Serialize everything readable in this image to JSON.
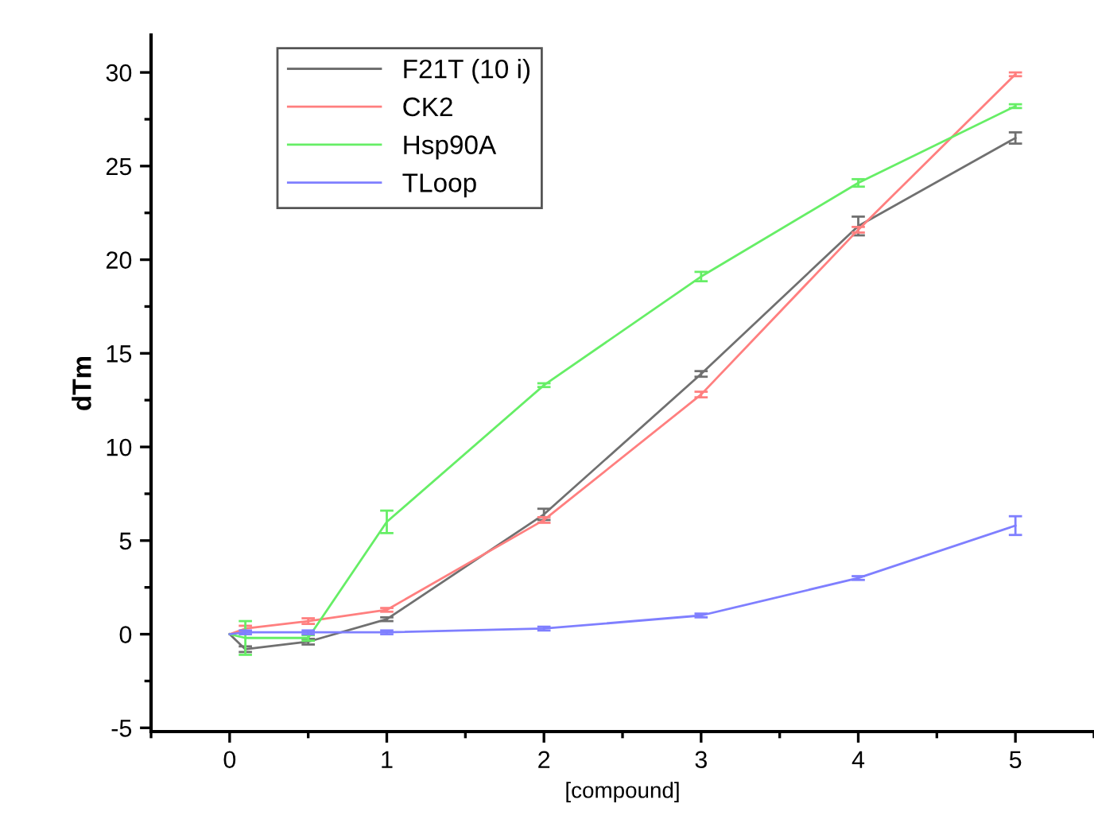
{
  "chart_data": {
    "type": "line",
    "xlabel": "[compound]",
    "ylabel": "dTm",
    "x": [
      0,
      0.1,
      0.5,
      1,
      2,
      3,
      4,
      5
    ],
    "series": [
      {
        "name": "F21T (10 i)",
        "color": "#707070",
        "values": [
          0,
          -0.8,
          -0.4,
          0.8,
          6.4,
          13.9,
          21.8,
          26.5
        ],
        "errors": [
          null,
          0.15,
          0.15,
          0.1,
          0.3,
          0.15,
          0.5,
          0.3
        ]
      },
      {
        "name": "CK2",
        "color": "#ff7f7f",
        "values": [
          0,
          0.3,
          0.7,
          1.3,
          6.1,
          12.8,
          21.6,
          29.9
        ],
        "errors": [
          null,
          0.15,
          0.15,
          0.1,
          0.15,
          0.15,
          0.15,
          0.1
        ]
      },
      {
        "name": "Hsp90A",
        "color": "#66ee66",
        "values": [
          0,
          -0.2,
          -0.2,
          6.0,
          13.3,
          19.1,
          24.1,
          28.2
        ],
        "errors": [
          null,
          0.9,
          0.15,
          0.6,
          0.1,
          0.25,
          0.2,
          0.1
        ]
      },
      {
        "name": "TLoop",
        "color": "#7f7fff",
        "values": [
          0,
          0.1,
          0.1,
          0.1,
          0.3,
          1.0,
          3.0,
          5.8
        ],
        "errors": [
          null,
          0.1,
          0.1,
          0.1,
          0.1,
          0.1,
          0.1,
          0.5
        ]
      }
    ],
    "xlim": [
      -0.5,
      5.5
    ],
    "xticks": [
      0,
      1,
      2,
      3,
      4,
      5
    ],
    "ylim": [
      -5.2,
      32
    ],
    "yticks": [
      -5,
      0,
      5,
      10,
      15,
      20,
      25,
      30
    ],
    "legend": "top left",
    "grid": false,
    "marker": "none",
    "line_style": "solid"
  }
}
